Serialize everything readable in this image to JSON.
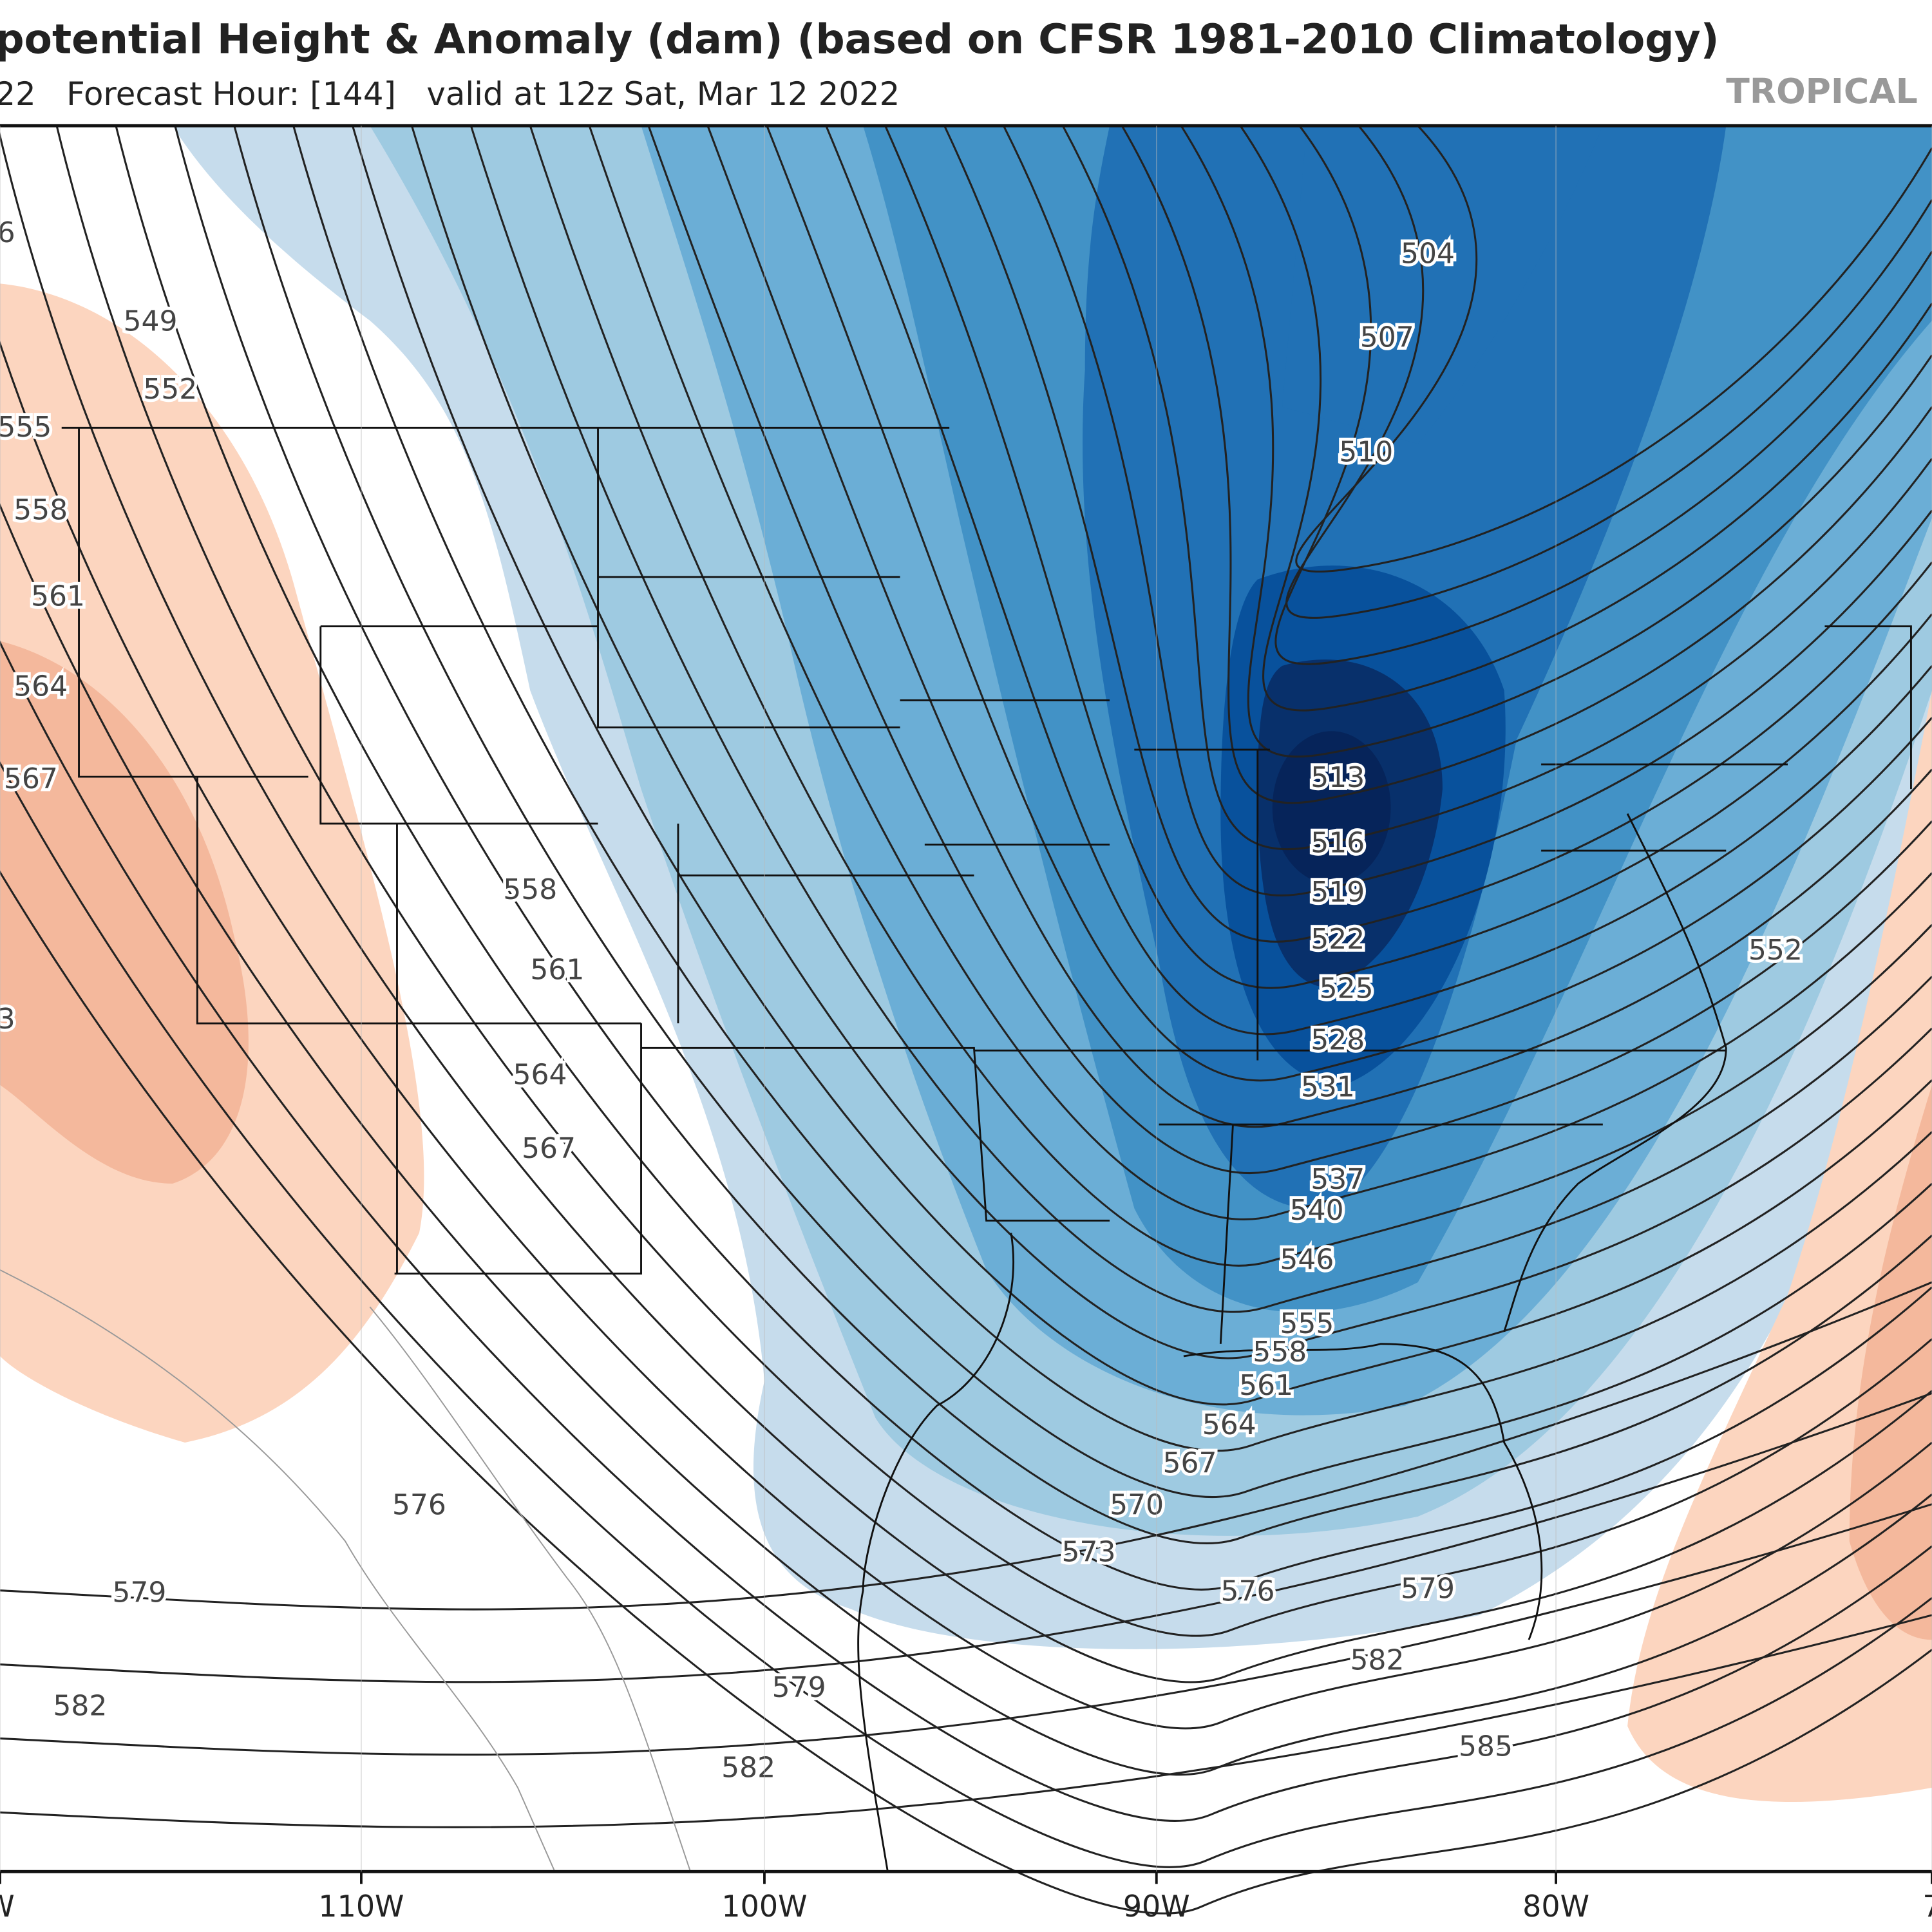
{
  "header": {
    "title": "potential Height & Anomaly (dam) (based on CFSR 1981-2010 Climatology)",
    "subtitle": "22   Forecast Hour: [144]   valid at 12z Sat, Mar 12 2022",
    "brand": "TROPICAL"
  },
  "map": {
    "contour_labels": [
      "504",
      "507",
      "510",
      "513",
      "516",
      "519",
      "522",
      "525",
      "528",
      "531",
      "537",
      "540",
      "546",
      "555",
      "558",
      "561",
      "564",
      "567",
      "570",
      "573",
      "576",
      "579",
      "582",
      "585",
      "552",
      "549",
      "552",
      "555",
      "558",
      "561",
      "564",
      "567",
      "558",
      "561",
      "564",
      "567",
      "576",
      "579",
      "579",
      "582",
      "582",
      "6",
      "3"
    ],
    "longitude_labels": [
      "W",
      "110W",
      "100W",
      "90W",
      "80W",
      "7"
    ]
  }
}
